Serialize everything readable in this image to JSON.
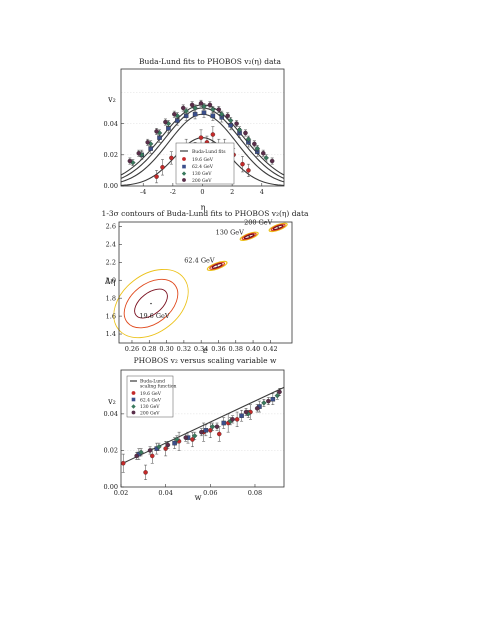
{
  "chart_data": [
    {
      "type": "scatter",
      "title": "Buda-Lund fits to PHOBOS v₂(η) data",
      "xlabel": "η",
      "ylabel": "v₂",
      "xlim": [
        -5.5,
        5.5
      ],
      "ylim": [
        0,
        0.075
      ],
      "xticks": [
        "-4",
        "-2",
        "0",
        "2",
        "4"
      ],
      "yticks": [
        "0.00",
        "0.02",
        "0.04"
      ],
      "legend": {
        "placement": "bottom-center",
        "entries": [
          "Buda-Lund fits",
          "19.6 GeV",
          "62.4 GeV",
          "130 GeV",
          "200 GeV"
        ]
      },
      "series_colors": [
        "#c42a2a",
        "#3b4f8c",
        "#3a7a5e",
        "#5a2e4a"
      ],
      "curves": [
        {
          "peak": 0.031,
          "width": 1.85,
          "color": "#3b3b3b"
        },
        {
          "peak": 0.046,
          "width": 2.3,
          "color": "#3b3b3b"
        },
        {
          "peak": 0.05,
          "width": 2.55,
          "color": "#3b3b3b"
        },
        {
          "peak": 0.052,
          "width": 2.75,
          "color": "#3b3b3b"
        }
      ],
      "series": [
        {
          "name": "19.6 GeV",
          "points": [
            {
              "x": -3.1,
              "y": 0.006,
              "err": 0.004
            },
            {
              "x": -2.7,
              "y": 0.012,
              "err": 0.005
            },
            {
              "x": -2.1,
              "y": 0.018,
              "err": 0.004
            },
            {
              "x": -1.5,
              "y": 0.022,
              "err": 0.004
            },
            {
              "x": -1.1,
              "y": 0.026,
              "err": 0.004
            },
            {
              "x": -0.5,
              "y": 0.024,
              "err": 0.004
            },
            {
              "x": -0.1,
              "y": 0.031,
              "err": 0.005
            },
            {
              "x": 0.3,
              "y": 0.028,
              "err": 0.004
            },
            {
              "x": 0.7,
              "y": 0.033,
              "err": 0.005
            },
            {
              "x": 1.1,
              "y": 0.026,
              "err": 0.004
            },
            {
              "x": 1.5,
              "y": 0.025,
              "err": 0.005
            },
            {
              "x": 2.1,
              "y": 0.02,
              "err": 0.004
            },
            {
              "x": 2.7,
              "y": 0.014,
              "err": 0.005
            },
            {
              "x": 3.1,
              "y": 0.01,
              "err": 0.004
            }
          ]
        },
        {
          "name": "62.4 GeV",
          "points": [
            {
              "x": -4.1,
              "y": 0.02,
              "err": 0.003
            },
            {
              "x": -3.5,
              "y": 0.024,
              "err": 0.003
            },
            {
              "x": -2.9,
              "y": 0.031,
              "err": 0.003
            },
            {
              "x": -2.3,
              "y": 0.037,
              "err": 0.003
            },
            {
              "x": -1.7,
              "y": 0.042,
              "err": 0.003
            },
            {
              "x": -1.1,
              "y": 0.045,
              "err": 0.003
            },
            {
              "x": -0.5,
              "y": 0.046,
              "err": 0.003
            },
            {
              "x": 0.1,
              "y": 0.047,
              "err": 0.003
            },
            {
              "x": 0.7,
              "y": 0.045,
              "err": 0.003
            },
            {
              "x": 1.3,
              "y": 0.044,
              "err": 0.003
            },
            {
              "x": 1.9,
              "y": 0.039,
              "err": 0.003
            },
            {
              "x": 2.5,
              "y": 0.034,
              "err": 0.003
            },
            {
              "x": 3.1,
              "y": 0.028,
              "err": 0.003
            },
            {
              "x": 3.7,
              "y": 0.022,
              "err": 0.003
            }
          ]
        },
        {
          "name": "130 GeV",
          "points": [
            {
              "x": -4.7,
              "y": 0.015,
              "err": 0.002
            },
            {
              "x": -4.1,
              "y": 0.02,
              "err": 0.002
            },
            {
              "x": -3.5,
              "y": 0.027,
              "err": 0.002
            },
            {
              "x": -2.9,
              "y": 0.034,
              "err": 0.002
            },
            {
              "x": -2.3,
              "y": 0.04,
              "err": 0.002
            },
            {
              "x": -1.7,
              "y": 0.045,
              "err": 0.002
            },
            {
              "x": -1.1,
              "y": 0.048,
              "err": 0.002
            },
            {
              "x": -0.5,
              "y": 0.05,
              "err": 0.002
            },
            {
              "x": 0.1,
              "y": 0.051,
              "err": 0.002
            },
            {
              "x": 0.7,
              "y": 0.049,
              "err": 0.002
            },
            {
              "x": 1.3,
              "y": 0.046,
              "err": 0.002
            },
            {
              "x": 1.9,
              "y": 0.042,
              "err": 0.002
            },
            {
              "x": 2.5,
              "y": 0.036,
              "err": 0.002
            },
            {
              "x": 3.1,
              "y": 0.03,
              "err": 0.002
            },
            {
              "x": 3.7,
              "y": 0.024,
              "err": 0.002
            },
            {
              "x": 4.3,
              "y": 0.018,
              "err": 0.002
            }
          ]
        },
        {
          "name": "200 GeV",
          "points": [
            {
              "x": -4.9,
              "y": 0.016,
              "err": 0.002
            },
            {
              "x": -4.3,
              "y": 0.021,
              "err": 0.002
            },
            {
              "x": -3.7,
              "y": 0.028,
              "err": 0.002
            },
            {
              "x": -3.1,
              "y": 0.035,
              "err": 0.002
            },
            {
              "x": -2.5,
              "y": 0.041,
              "err": 0.002
            },
            {
              "x": -1.9,
              "y": 0.046,
              "err": 0.002
            },
            {
              "x": -1.3,
              "y": 0.05,
              "err": 0.002
            },
            {
              "x": -0.7,
              "y": 0.052,
              "err": 0.002
            },
            {
              "x": -0.1,
              "y": 0.053,
              "err": 0.002
            },
            {
              "x": 0.5,
              "y": 0.052,
              "err": 0.002
            },
            {
              "x": 1.1,
              "y": 0.049,
              "err": 0.002
            },
            {
              "x": 1.7,
              "y": 0.045,
              "err": 0.002
            },
            {
              "x": 2.3,
              "y": 0.04,
              "err": 0.002
            },
            {
              "x": 2.9,
              "y": 0.034,
              "err": 0.002
            },
            {
              "x": 3.5,
              "y": 0.027,
              "err": 0.002
            },
            {
              "x": 4.1,
              "y": 0.021,
              "err": 0.002
            },
            {
              "x": 4.7,
              "y": 0.016,
              "err": 0.002
            }
          ]
        }
      ]
    },
    {
      "type": "contour",
      "title": "1-3σ contours of Buda-Lund fits to PHOBOS v₂(η) data",
      "xlabel": "ε",
      "ylabel": "Δη",
      "xlim": [
        0.245,
        0.445
      ],
      "ylim": [
        1.3,
        2.65
      ],
      "xticks": [
        "0.26",
        "0.28",
        "0.30",
        "0.32",
        "0.34",
        "0.36",
        "0.38",
        "0.40",
        "0.42"
      ],
      "xtick_values": [
        0.26,
        0.28,
        0.3,
        0.32,
        0.34,
        0.36,
        0.38,
        0.4,
        0.42
      ],
      "yticks": [
        "1.4",
        "1.6",
        "1.8",
        "2.0",
        "2.2",
        "2.4",
        "2.6"
      ],
      "ytick_values": [
        1.4,
        1.6,
        1.8,
        2.0,
        2.2,
        2.4,
        2.6
      ],
      "sigma_colors": [
        "#7a1020",
        "#e04a1e",
        "#ecc21a"
      ],
      "contours": [
        {
          "label": "19.6 GeV",
          "center": [
            0.282,
            1.74
          ],
          "rx": [
            0.022,
            0.035,
            0.048
          ],
          "ry": [
            0.12,
            0.22,
            0.32
          ],
          "angle": -38,
          "label_at": [
            0.286,
            1.58
          ]
        },
        {
          "label": "62.4 GeV",
          "center": [
            0.3585,
            2.16
          ],
          "rx": [
            0.006,
            0.009,
            0.012
          ],
          "ry": [
            0.016,
            0.024,
            0.033
          ],
          "angle": -20,
          "label_at": [
            0.338,
            2.2
          ]
        },
        {
          "label": "130 GeV",
          "center": [
            0.3955,
            2.49
          ],
          "rx": [
            0.006,
            0.0085,
            0.011
          ],
          "ry": [
            0.014,
            0.022,
            0.03
          ],
          "angle": -20,
          "label_at": [
            0.373,
            2.51
          ]
        },
        {
          "label": "200 GeV",
          "center": [
            0.429,
            2.59
          ],
          "rx": [
            0.006,
            0.0085,
            0.011
          ],
          "ry": [
            0.014,
            0.022,
            0.03
          ],
          "angle": -20,
          "label_at": [
            0.406,
            2.62
          ]
        }
      ]
    },
    {
      "type": "scatter",
      "title": "PHOBOS v₂ versus scaling variable w",
      "xlabel": "w",
      "ylabel": "v₂",
      "xlim": [
        0.02,
        0.093
      ],
      "ylim": [
        0,
        0.064
      ],
      "xticks": [
        "0.02",
        "0.04",
        "0.06",
        "0.08"
      ],
      "xtick_values": [
        0.02,
        0.04,
        0.06,
        0.08
      ],
      "yticks": [
        "0.00",
        "0.02",
        "0.04"
      ],
      "ytick_values": [
        0,
        0.02,
        0.04
      ],
      "legend": {
        "placement": "top-left",
        "entries": [
          "Buda-Lund",
          "scaling function",
          "19.6 GeV",
          "62.4 GeV",
          "130 GeV",
          "200 GeV"
        ]
      },
      "fit_line": {
        "from": [
          0.02,
          0.0125
        ],
        "to": [
          0.093,
          0.0545
        ],
        "color": "#3b3b3b"
      },
      "series": [
        {
          "name": "19.6 GeV",
          "points": [
            {
              "x": 0.021,
              "y": 0.013,
              "err": 0.005
            },
            {
              "x": 0.031,
              "y": 0.008,
              "err": 0.004
            },
            {
              "x": 0.034,
              "y": 0.017,
              "err": 0.004
            },
            {
              "x": 0.04,
              "y": 0.021,
              "err": 0.004
            },
            {
              "x": 0.046,
              "y": 0.025,
              "err": 0.005
            },
            {
              "x": 0.052,
              "y": 0.026,
              "err": 0.004
            },
            {
              "x": 0.057,
              "y": 0.03,
              "err": 0.005
            },
            {
              "x": 0.06,
              "y": 0.031,
              "err": 0.004
            },
            {
              "x": 0.064,
              "y": 0.029,
              "err": 0.004
            },
            {
              "x": 0.068,
              "y": 0.035,
              "err": 0.005
            },
            {
              "x": 0.072,
              "y": 0.037,
              "err": 0.004
            },
            {
              "x": 0.078,
              "y": 0.041,
              "err": 0.004
            }
          ]
        },
        {
          "name": "62.4 GeV",
          "points": [
            {
              "x": 0.028,
              "y": 0.018,
              "err": 0.003
            },
            {
              "x": 0.036,
              "y": 0.021,
              "err": 0.003
            },
            {
              "x": 0.044,
              "y": 0.024,
              "err": 0.003
            },
            {
              "x": 0.05,
              "y": 0.027,
              "err": 0.003
            },
            {
              "x": 0.058,
              "y": 0.031,
              "err": 0.003
            },
            {
              "x": 0.066,
              "y": 0.035,
              "err": 0.003
            },
            {
              "x": 0.074,
              "y": 0.039,
              "err": 0.003
            },
            {
              "x": 0.082,
              "y": 0.044,
              "err": 0.003
            },
            {
              "x": 0.088,
              "y": 0.048,
              "err": 0.003
            }
          ]
        },
        {
          "name": "130 GeV",
          "points": [
            {
              "x": 0.029,
              "y": 0.019,
              "err": 0.002
            },
            {
              "x": 0.037,
              "y": 0.022,
              "err": 0.002
            },
            {
              "x": 0.045,
              "y": 0.026,
              "err": 0.002
            },
            {
              "x": 0.053,
              "y": 0.028,
              "err": 0.002
            },
            {
              "x": 0.061,
              "y": 0.033,
              "err": 0.002
            },
            {
              "x": 0.069,
              "y": 0.036,
              "err": 0.002
            },
            {
              "x": 0.077,
              "y": 0.04,
              "err": 0.002
            },
            {
              "x": 0.084,
              "y": 0.046,
              "err": 0.002
            },
            {
              "x": 0.09,
              "y": 0.05,
              "err": 0.002
            }
          ]
        },
        {
          "name": "200 GeV",
          "points": [
            {
              "x": 0.027,
              "y": 0.017,
              "err": 0.002
            },
            {
              "x": 0.033,
              "y": 0.02,
              "err": 0.002
            },
            {
              "x": 0.041,
              "y": 0.023,
              "err": 0.002
            },
            {
              "x": 0.049,
              "y": 0.027,
              "err": 0.002
            },
            {
              "x": 0.056,
              "y": 0.03,
              "err": 0.002
            },
            {
              "x": 0.063,
              "y": 0.033,
              "err": 0.002
            },
            {
              "x": 0.07,
              "y": 0.037,
              "err": 0.002
            },
            {
              "x": 0.076,
              "y": 0.041,
              "err": 0.002
            },
            {
              "x": 0.081,
              "y": 0.043,
              "err": 0.002
            },
            {
              "x": 0.086,
              "y": 0.047,
              "err": 0.002
            },
            {
              "x": 0.091,
              "y": 0.052,
              "err": 0.002
            }
          ]
        }
      ]
    }
  ]
}
